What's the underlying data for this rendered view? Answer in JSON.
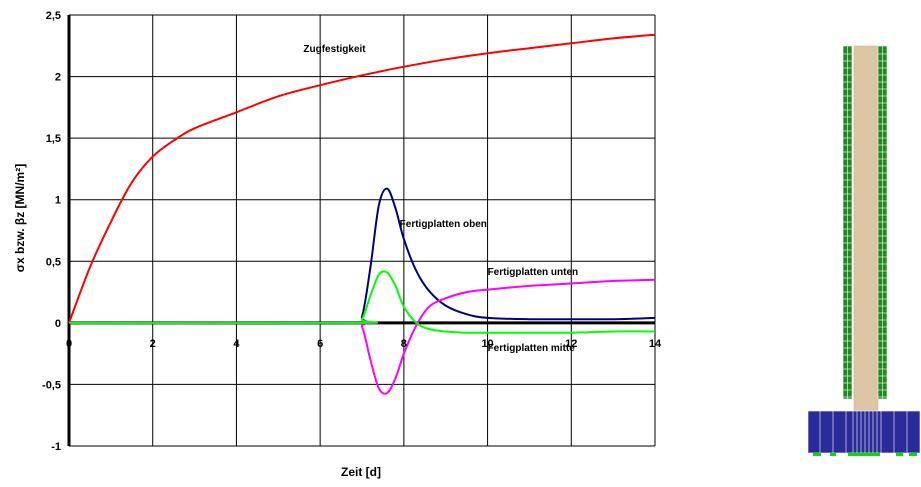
{
  "chart_data": {
    "type": "line",
    "title": "",
    "xlabel": "Zeit [d]",
    "ylabel": "σx bzw. βz [MN/m²]",
    "xlim": [
      0,
      14
    ],
    "ylim": [
      -1,
      2.5
    ],
    "x_ticks": [
      "0",
      "2",
      "4",
      "6",
      "8",
      "10",
      "12",
      "14"
    ],
    "y_ticks": [
      "2,5",
      "2",
      "1,5",
      "1",
      "0,5",
      "0",
      "-0,5",
      "-1"
    ],
    "grid": true,
    "legend": "none",
    "series": [
      {
        "name": "Zugfestigkeit",
        "color": "#ff0000",
        "x": [
          0,
          0.5,
          1,
          1.5,
          2,
          2.5,
          3,
          4,
          5,
          6,
          7,
          8,
          9,
          10,
          11,
          12,
          13,
          14
        ],
        "y": [
          0,
          0.45,
          0.82,
          1.14,
          1.35,
          1.48,
          1.58,
          1.71,
          1.84,
          1.93,
          2.01,
          2.08,
          2.14,
          2.19,
          2.23,
          2.27,
          2.31,
          2.34
        ]
      },
      {
        "name": "Fertigplatten oben",
        "color": "#000080",
        "x": [
          0,
          6.8,
          7.0,
          7.2,
          7.4,
          7.6,
          7.8,
          8.0,
          8.3,
          8.6,
          9.0,
          9.5,
          10,
          11,
          12,
          13,
          14
        ],
        "y": [
          0,
          0,
          0.05,
          0.45,
          0.95,
          1.09,
          0.93,
          0.68,
          0.42,
          0.26,
          0.14,
          0.07,
          0.04,
          0.03,
          0.03,
          0.03,
          0.04
        ]
      },
      {
        "name": "Fertigplatten unten",
        "color": "#ff00ff",
        "x": [
          0,
          6.8,
          7.0,
          7.2,
          7.4,
          7.6,
          7.8,
          8.0,
          8.3,
          8.6,
          9.0,
          9.5,
          10,
          11,
          12,
          13,
          14
        ],
        "y": [
          0,
          0,
          -0.03,
          -0.3,
          -0.53,
          -0.57,
          -0.45,
          -0.25,
          -0.02,
          0.13,
          0.2,
          0.25,
          0.27,
          0.3,
          0.32,
          0.34,
          0.35
        ]
      },
      {
        "name": "Fertigplatten mitte",
        "color": "#00ff00",
        "x": [
          0,
          6.8,
          7.0,
          7.2,
          7.4,
          7.6,
          7.8,
          8.0,
          8.3,
          8.6,
          9.0,
          9.5,
          10,
          11,
          12,
          13,
          14
        ],
        "y": [
          0,
          0,
          0.03,
          0.22,
          0.39,
          0.41,
          0.3,
          0.13,
          0.0,
          -0.05,
          -0.07,
          -0.08,
          -0.08,
          -0.08,
          -0.08,
          -0.07,
          -0.07
        ]
      }
    ],
    "annotations": [
      {
        "text": "Zugfestigkeit",
        "x": 5.6,
        "y": 2.2
      },
      {
        "text": "Fertigplatten oben",
        "x": 7.9,
        "y": 0.78
      },
      {
        "text": "Fertigplatten unten",
        "x": 10.0,
        "y": 0.39
      },
      {
        "text": "Fertigplatten mitte",
        "x": 10.0,
        "y": -0.23
      }
    ]
  },
  "cross_section": {
    "colors": {
      "core": "#dcc5a5",
      "side_panels": "#1f8a1f",
      "base": "#2a2a9a",
      "base_feet": "#00e000"
    }
  }
}
